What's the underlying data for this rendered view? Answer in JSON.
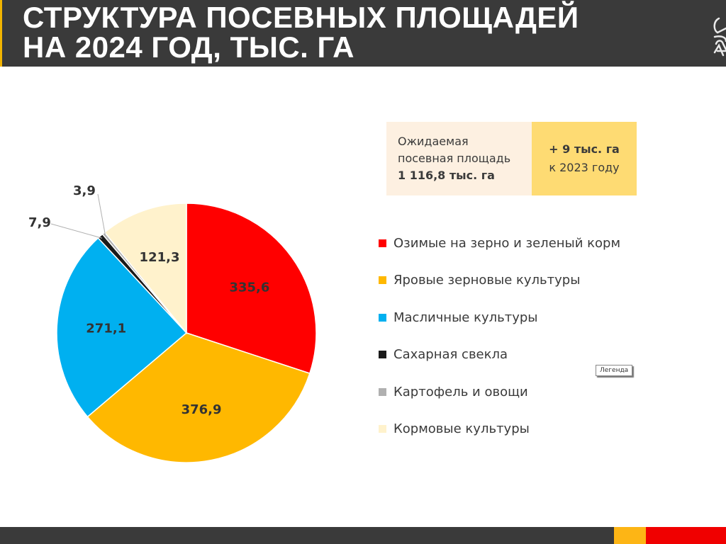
{
  "header": {
    "title_line1": "СТРУКТУРА ПОСЕВНЫХ ПЛОЩАДЕЙ",
    "title_line2": "НА 2024 ГОД, ТЫС. ГА"
  },
  "info": {
    "left_line1": "Ожидаемая",
    "left_line2": "посевная площадь",
    "left_line3": "1 116,8 тыс. га",
    "right_line1": "+ 9 тыс. га",
    "right_line2": "к 2023 году"
  },
  "tooltip": "Легенда",
  "chart_data": {
    "type": "pie",
    "title": "",
    "start_angle_deg": 0,
    "direction": "clockwise",
    "legend_position": "right",
    "slices": [
      {
        "label": "Озимые на зерно и зеленый корм",
        "value": 335.6,
        "value_label": "335,6",
        "color": "#ff0000"
      },
      {
        "label": "Яровые зерновые культуры",
        "value": 376.9,
        "value_label": "376,9",
        "color": "#ffb800"
      },
      {
        "label": "Масличные культуры",
        "value": 271.1,
        "value_label": "271,1",
        "color": "#00b0f0"
      },
      {
        "label": "Сахарная свекла",
        "value": 7.9,
        "value_label": "7,9",
        "color": "#1a1a1a"
      },
      {
        "label": "Картофель и овощи",
        "value": 3.9,
        "value_label": "3,9",
        "color": "#b0b0b0"
      },
      {
        "label": "Кормовые культуры",
        "value": 121.3,
        "value_label": "121,3",
        "color": "#fff2cc"
      }
    ],
    "label_color": "#333333"
  }
}
